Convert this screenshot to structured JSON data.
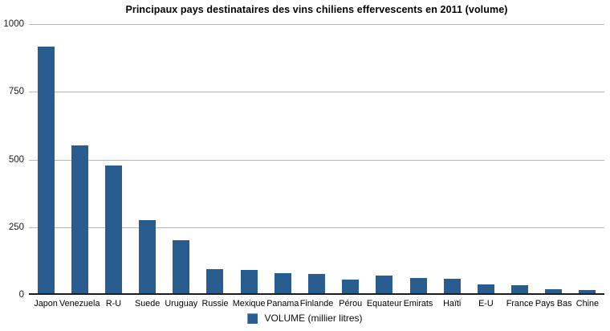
{
  "chart_data": {
    "type": "bar",
    "title": "Principaux pays destinataires des vins chiliens effervescents en 2011 (volume)",
    "categories": [
      "Japon",
      "Venezuela",
      "R-U",
      "Suede",
      "Uruguay",
      "Russie",
      "Mexique",
      "Panama",
      "Finlande",
      "Pérou",
      "Equateur",
      "Emirats",
      "Haïti",
      "E-U",
      "France",
      "Pays Bas",
      "Chine"
    ],
    "values": [
      915,
      548,
      475,
      272,
      200,
      93,
      88,
      77,
      74,
      52,
      68,
      60,
      57,
      35,
      32,
      19,
      16
    ],
    "series": [
      {
        "name": "VOLUME (millier litres)",
        "values": [
          915,
          548,
          475,
          272,
          200,
          93,
          88,
          77,
          74,
          52,
          68,
          60,
          57,
          35,
          32,
          19,
          16
        ]
      }
    ],
    "xlabel": "",
    "ylabel": "",
    "ylim": [
      0,
      1000
    ],
    "yticks": [
      0,
      250,
      500,
      750,
      1000
    ],
    "grid": true,
    "legend": {
      "label": "VOLUME (millier litres)",
      "position": "bottom"
    },
    "colors": {
      "bar": "#2a5d8f",
      "gridline": "#b7b7b7",
      "axis": "#1c1c1c",
      "text": "#000000"
    }
  }
}
